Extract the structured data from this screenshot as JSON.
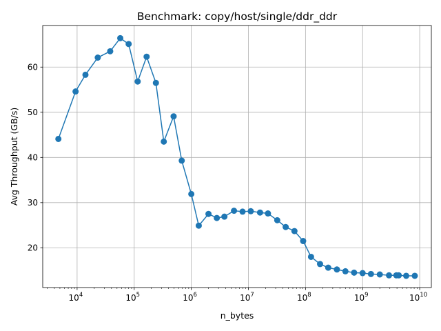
{
  "chart_data": {
    "type": "line",
    "title": "Benchmark: copy/host/single/ddr_ddr",
    "xlabel": "n_bytes",
    "ylabel": "Avg Throughput (GB/s)",
    "xscale": "log",
    "xlim": [
      2500,
      16000000000
    ],
    "ylim": [
      11.2,
      69.2
    ],
    "grid": true,
    "series_color": "#1f77b4",
    "x_ticks": [
      {
        "base": "10",
        "exp": "4",
        "value": 10000
      },
      {
        "base": "10",
        "exp": "5",
        "value": 100000
      },
      {
        "base": "10",
        "exp": "6",
        "value": 1000000
      },
      {
        "base": "10",
        "exp": "7",
        "value": 10000000
      },
      {
        "base": "10",
        "exp": "8",
        "value": 100000000
      },
      {
        "base": "10",
        "exp": "9",
        "value": 1000000000
      },
      {
        "base": "10",
        "exp": "10",
        "value": 10000000000
      }
    ],
    "y_ticks": [
      20,
      30,
      40,
      50,
      60
    ],
    "series": [
      {
        "x": [
          4700,
          9400,
          14000,
          23000,
          38000,
          57000,
          80000,
          115000,
          165000,
          240000,
          330000,
          490000,
          680000,
          1000000,
          1350000,
          2000000,
          2800000,
          3800000,
          5600000,
          7900000,
          11000000,
          16000000,
          22000000,
          32000000,
          45000000,
          64000000,
          91000000,
          125000000,
          180000000,
          250000000,
          355000000,
          500000000,
          710000000,
          1000000000,
          1400000000,
          2000000000,
          2900000000,
          3900000000,
          4300000000,
          5800000000,
          8200000000
        ],
        "y": [
          44.1,
          54.6,
          58.3,
          62.1,
          63.5,
          66.4,
          65.1,
          56.8,
          62.3,
          56.5,
          43.5,
          49.1,
          39.3,
          31.9,
          24.9,
          27.5,
          26.6,
          26.9,
          28.2,
          28.0,
          28.1,
          27.8,
          27.6,
          26.1,
          24.6,
          23.7,
          21.5,
          18.0,
          16.4,
          15.6,
          15.2,
          14.8,
          14.5,
          14.4,
          14.2,
          14.1,
          13.9,
          13.9,
          13.9,
          13.8,
          13.8
        ]
      }
    ]
  }
}
